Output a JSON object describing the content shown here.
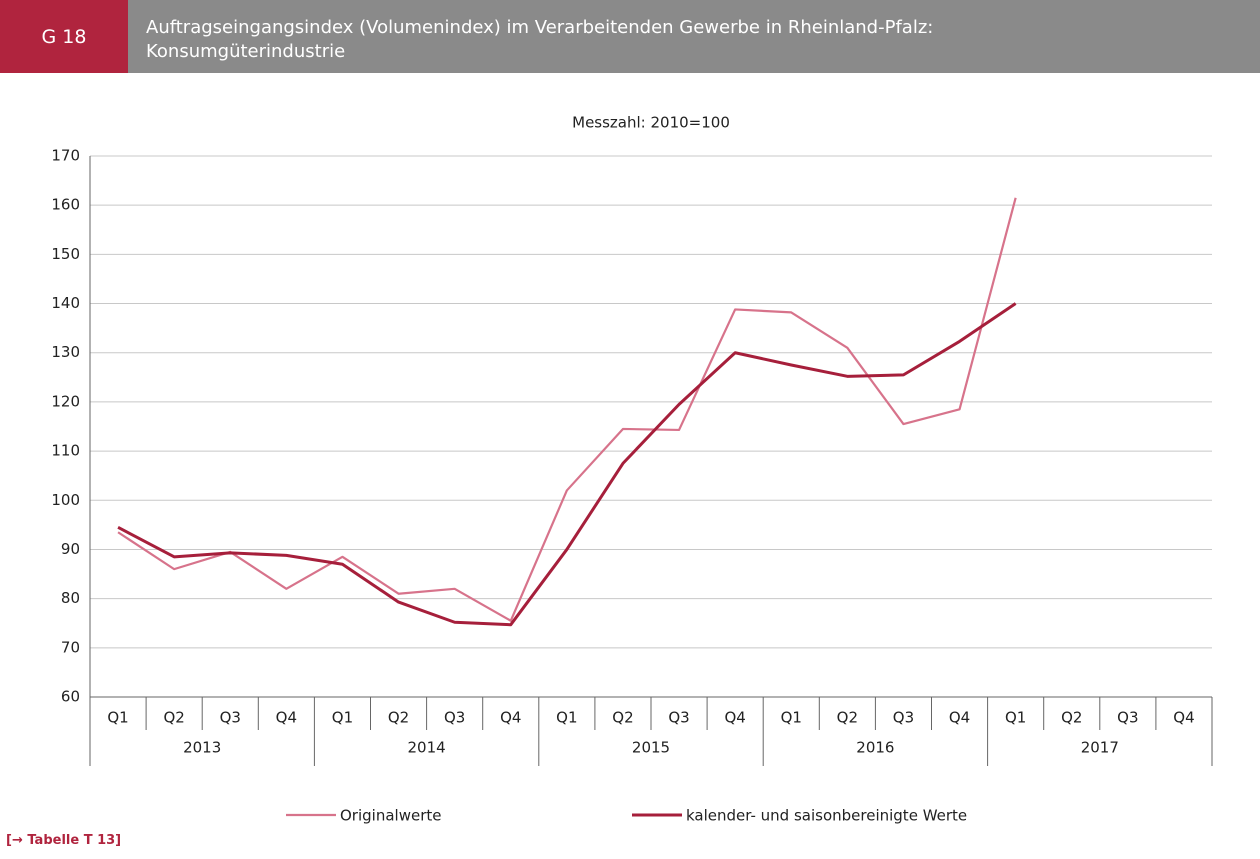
{
  "header": {
    "badge": "G 18",
    "title": "Auftragseingangsindex (Volumenindex) im  Verarbeitenden Gewerbe in Rheinland-Pfalz:\nKonsumgüterindustrie"
  },
  "chart_data": {
    "type": "line",
    "subtitle": "Messzahl: 2010=100",
    "categories": [
      "Q1",
      "Q2",
      "Q3",
      "Q4",
      "Q1",
      "Q2",
      "Q3",
      "Q4",
      "Q1",
      "Q2",
      "Q3",
      "Q4",
      "Q1",
      "Q2",
      "Q3",
      "Q4",
      "Q1",
      "Q2",
      "Q3",
      "Q4"
    ],
    "category_groups": [
      "2013",
      "2014",
      "2015",
      "2016",
      "2017"
    ],
    "series": [
      {
        "name": "Originalwerte",
        "color": "#d7738b",
        "values": [
          93.5,
          86,
          89.5,
          82,
          88.5,
          81,
          82,
          75.5,
          102,
          114.5,
          114.3,
          138.8,
          138.2,
          131,
          115.5,
          118.5,
          161.5,
          null,
          null,
          null
        ]
      },
      {
        "name": "kalender- und saisonbereinigte Werte",
        "color": "#a61f3b",
        "values": [
          94.5,
          88.5,
          89.3,
          88.8,
          87,
          79.3,
          75.2,
          74.7,
          90,
          107.5,
          119.5,
          130,
          127.5,
          125.2,
          125.5,
          132.3,
          140,
          null,
          null,
          null
        ]
      }
    ],
    "ylim": [
      60,
      170
    ],
    "yticks": [
      60,
      70,
      80,
      90,
      100,
      110,
      120,
      130,
      140,
      150,
      160,
      170
    ],
    "grid": true
  },
  "footer": {
    "link": "[→ Tabelle T 13]"
  }
}
